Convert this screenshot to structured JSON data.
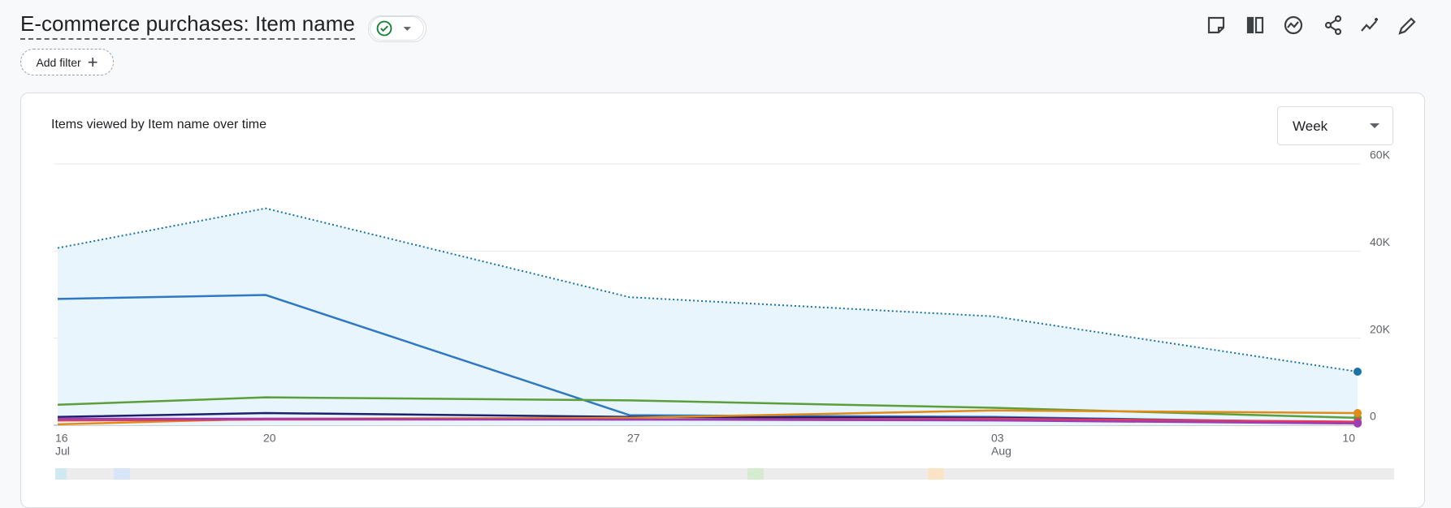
{
  "header": {
    "title": "E-commerce purchases: Item name",
    "add_filter": "Add filter"
  },
  "card": {
    "dropdown": "Week"
  },
  "chart_data": {
    "type": "line",
    "title": "Items viewed by Item name over time",
    "x": [
      "07-16",
      "07-20",
      "07-27",
      "08-03",
      "08-10"
    ],
    "xlim": [
      "07-16",
      "08-10"
    ],
    "xticks": [
      {
        "value": "07-16",
        "label": "16"
      },
      {
        "value": "07-20",
        "label": "20"
      },
      {
        "value": "07-27",
        "label": "27"
      },
      {
        "value": "08-03",
        "label": "03"
      },
      {
        "value": "08-10",
        "label": "10"
      }
    ],
    "xtick_months": [
      {
        "value": "07-16",
        "label": "Jul"
      },
      {
        "value": "08-03",
        "label": "Aug"
      }
    ],
    "ylim": [
      0,
      60000
    ],
    "yticks": [
      0,
      {
        "value": 20000,
        "label": "20K"
      },
      {
        "value": 40000,
        "label": "40K"
      },
      {
        "value": 60000,
        "label": "60K"
      }
    ],
    "grid": true,
    "series": [
      {
        "color": "#1a73a8",
        "style": "dotted",
        "area": true,
        "values": [
          40700,
          49800,
          29400,
          25000,
          12300
        ]
      },
      {
        "color": "#2f78c4",
        "values": [
          29000,
          29900,
          2300,
          1900,
          600
        ]
      },
      {
        "color": "#5c9e3a",
        "values": [
          4700,
          6400,
          5700,
          4000,
          1700
        ]
      },
      {
        "color": "#1f1f6e",
        "values": [
          1900,
          2800,
          1900,
          1700,
          600
        ]
      },
      {
        "color": "#e08b1a",
        "values": [
          200,
          1500,
          1700,
          3400,
          2800
        ]
      },
      {
        "color": "#e5395a",
        "values": [
          1100,
          1300,
          1300,
          1500,
          800
        ]
      },
      {
        "color": "#9c3fb5",
        "values": [
          1500,
          1500,
          1300,
          1100,
          400
        ]
      }
    ]
  }
}
